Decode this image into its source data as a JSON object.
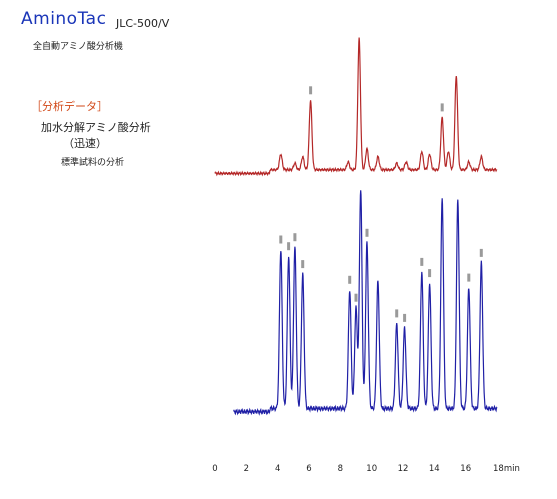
{
  "header": {
    "brand": "AminoTac",
    "model": "JLC-500/V",
    "tagline": "全自動アミノ酸分析機"
  },
  "annotation": {
    "section": "［分析データ］",
    "title": "加水分解アミノ酸分析",
    "subtitle": "（迅速）",
    "note": "標準試料の分析"
  },
  "colors": {
    "upper_trace": "#b42828",
    "lower_trace": "#2020a6",
    "peak_marker": "#9a9a9a",
    "brand": "#1a35b8",
    "section": "#d24818"
  },
  "chart_data": {
    "type": "line",
    "title": "",
    "xlabel": "",
    "ylabel": "",
    "x_unit": "min",
    "xlim": [
      0,
      18
    ],
    "x_ticks": [
      "0",
      "2",
      "4",
      "6",
      "8",
      "10",
      "12",
      "14",
      "16",
      "18min"
    ],
    "grid": false,
    "legend": "none",
    "series": [
      {
        "trace": "upper",
        "baseline": 0.04,
        "peaks": [
          {
            "rt": 4.2,
            "height": 0.12,
            "marker": false
          },
          {
            "rt": 5.1,
            "height": 0.05,
            "marker": false
          },
          {
            "rt": 5.6,
            "height": 0.1,
            "marker": false
          },
          {
            "rt": 6.1,
            "height": 0.53,
            "marker": true
          },
          {
            "rt": 8.5,
            "height": 0.06,
            "marker": false
          },
          {
            "rt": 9.2,
            "height": 1.0,
            "marker": false
          },
          {
            "rt": 9.7,
            "height": 0.16,
            "marker": false
          },
          {
            "rt": 10.4,
            "height": 0.1,
            "marker": false
          },
          {
            "rt": 11.6,
            "height": 0.05,
            "marker": false
          },
          {
            "rt": 12.2,
            "height": 0.06,
            "marker": false
          },
          {
            "rt": 13.2,
            "height": 0.14,
            "marker": false
          },
          {
            "rt": 13.7,
            "height": 0.12,
            "marker": false
          },
          {
            "rt": 14.5,
            "height": 0.4,
            "marker": true
          },
          {
            "rt": 14.9,
            "height": 0.14,
            "marker": false
          },
          {
            "rt": 15.4,
            "height": 0.72,
            "marker": false
          },
          {
            "rt": 16.2,
            "height": 0.06,
            "marker": false
          },
          {
            "rt": 17.0,
            "height": 0.1,
            "marker": false
          }
        ]
      },
      {
        "trace": "lower",
        "baseline": 0.02,
        "peaks": [
          {
            "rt": 4.2,
            "height": 0.71,
            "marker": true
          },
          {
            "rt": 4.7,
            "height": 0.68,
            "marker": true
          },
          {
            "rt": 5.1,
            "height": 0.72,
            "marker": true
          },
          {
            "rt": 5.6,
            "height": 0.6,
            "marker": true
          },
          {
            "rt": 8.6,
            "height": 0.53,
            "marker": true
          },
          {
            "rt": 9.0,
            "height": 0.45,
            "marker": true
          },
          {
            "rt": 9.3,
            "height": 0.98,
            "marker": false
          },
          {
            "rt": 9.7,
            "height": 0.74,
            "marker": true
          },
          {
            "rt": 10.4,
            "height": 0.57,
            "marker": false
          },
          {
            "rt": 11.6,
            "height": 0.38,
            "marker": true
          },
          {
            "rt": 12.1,
            "height": 0.36,
            "marker": true
          },
          {
            "rt": 13.2,
            "height": 0.61,
            "marker": true
          },
          {
            "rt": 13.7,
            "height": 0.56,
            "marker": true
          },
          {
            "rt": 14.5,
            "height": 0.94,
            "marker": false
          },
          {
            "rt": 15.5,
            "height": 0.93,
            "marker": false
          },
          {
            "rt": 16.2,
            "height": 0.54,
            "marker": true
          },
          {
            "rt": 17.0,
            "height": 0.65,
            "marker": true
          }
        ]
      }
    ]
  }
}
